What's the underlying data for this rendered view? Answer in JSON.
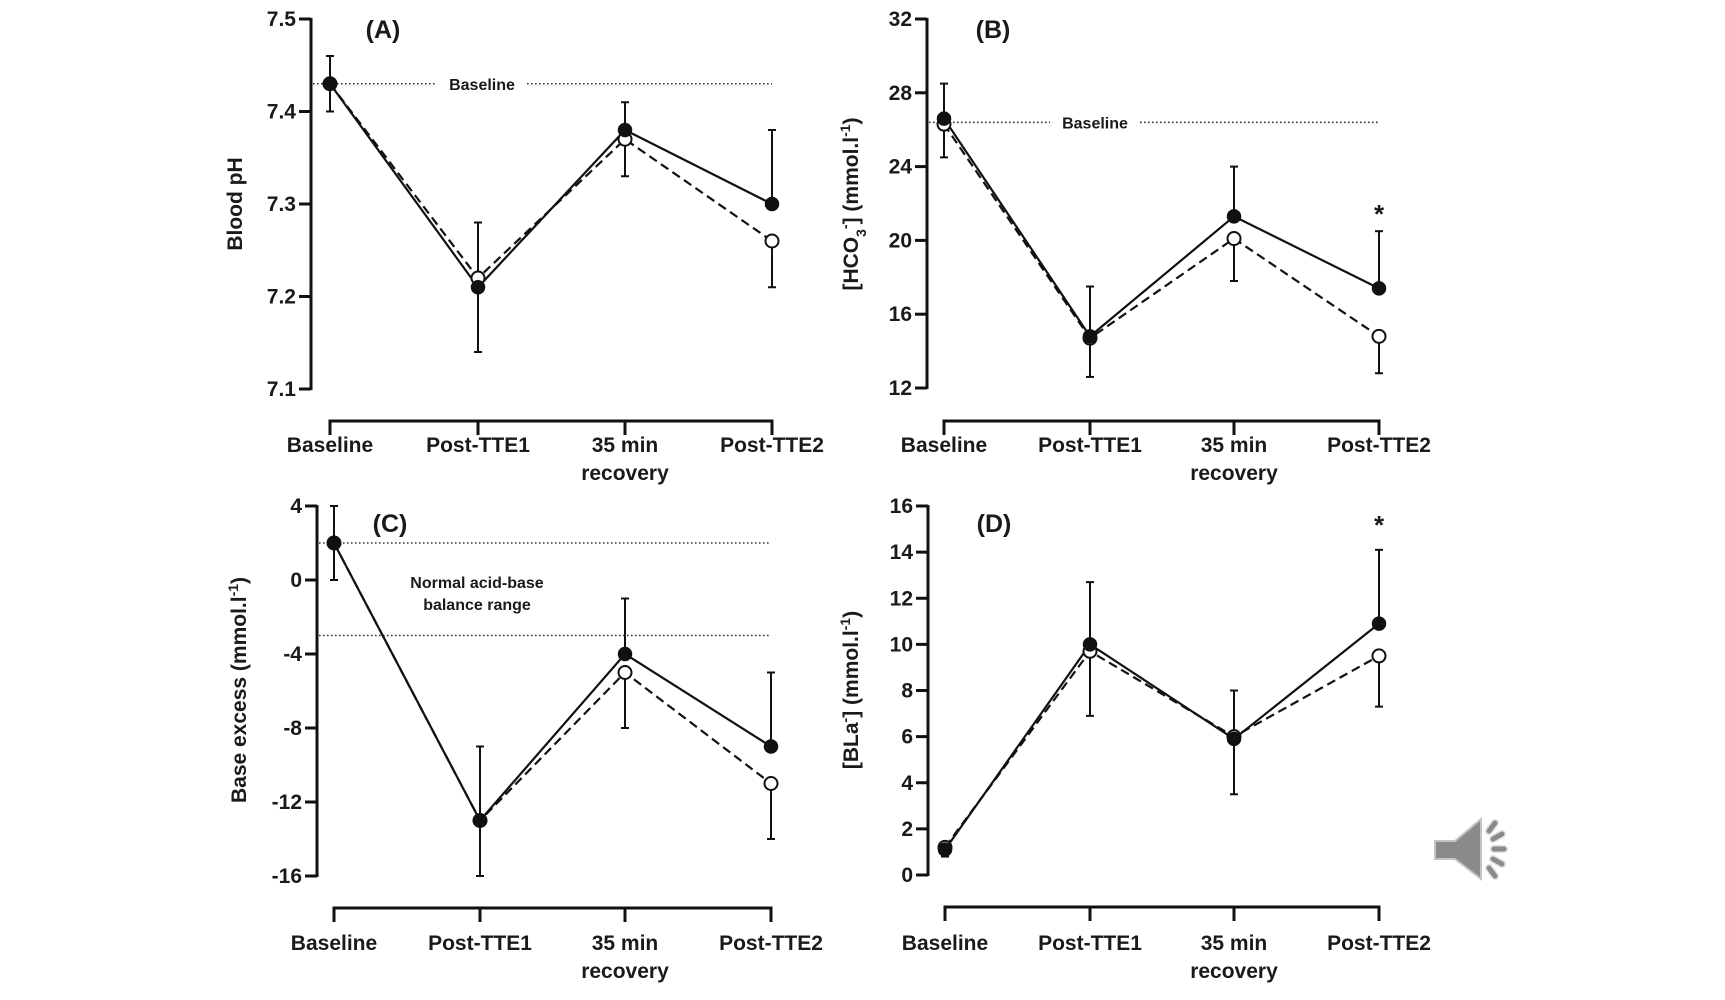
{
  "chart_data": [
    {
      "panel": "(A)",
      "type": "line",
      "title": "",
      "xlabel": "",
      "ylabel": "Blood pH",
      "categories": [
        "Baseline",
        "Post-TTE1",
        "35 min|recovery",
        "Post-TTE2"
      ],
      "ylim": [
        7.1,
        7.5
      ],
      "yticks": [
        "7.1",
        "7.2",
        "7.3",
        "7.4",
        "7.5"
      ],
      "ytick_values": [
        7.1,
        7.2,
        7.3,
        7.4,
        7.5
      ],
      "grid": false,
      "series": [
        {
          "name": "filled-circles",
          "marker": "filled",
          "line": "solid",
          "values": [
            7.43,
            7.21,
            7.38,
            7.3
          ],
          "err_upper": [
            7.46,
            7.28,
            7.41,
            7.38
          ],
          "err_lower": [
            7.4,
            null,
            null,
            null
          ]
        },
        {
          "name": "open-circles",
          "marker": "open",
          "line": "dashed",
          "values": [
            7.43,
            7.22,
            7.37,
            7.26
          ],
          "err_upper": [
            null,
            null,
            null,
            null
          ],
          "err_lower": [
            null,
            7.14,
            7.33,
            7.21
          ]
        }
      ],
      "reference_lines": [
        {
          "value": 7.43,
          "label": "Baseline",
          "from": "Baseline",
          "to": "Post-TTE2"
        }
      ],
      "annotations": []
    },
    {
      "panel": "(B)",
      "type": "line",
      "title": "",
      "xlabel": "",
      "ylabel": "[HCO3-] (mmol.l-1)",
      "ylabel_parts": {
        "pre": "[HCO",
        "sub": "3",
        "sup1": "-",
        "mid": "] (mmol.l",
        "sup2": "-1",
        "post": ")"
      },
      "categories": [
        "Baseline",
        "Post-TTE1",
        "35 min|recovery",
        "Post-TTE2"
      ],
      "ylim": [
        12,
        32
      ],
      "yticks": [
        "12",
        "16",
        "20",
        "24",
        "28",
        "32"
      ],
      "ytick_values": [
        12,
        16,
        20,
        24,
        28,
        32
      ],
      "grid": false,
      "series": [
        {
          "name": "filled-circles",
          "marker": "filled",
          "line": "solid",
          "values": [
            26.6,
            14.8,
            21.3,
            17.4
          ],
          "err_upper": [
            28.5,
            17.5,
            24.0,
            20.5
          ],
          "err_lower": [
            null,
            null,
            null,
            null
          ]
        },
        {
          "name": "open-circles",
          "marker": "open",
          "line": "dashed",
          "values": [
            26.3,
            14.7,
            20.1,
            14.8
          ],
          "err_upper": [
            null,
            null,
            null,
            null
          ],
          "err_lower": [
            24.5,
            12.6,
            17.8,
            12.8
          ]
        }
      ],
      "reference_lines": [
        {
          "value": 26.4,
          "label": "Baseline",
          "from": "Baseline",
          "to": "Post-TTE2"
        }
      ],
      "annotations": [
        {
          "text": "*",
          "category": "Post-TTE2",
          "y": 21.6
        }
      ]
    },
    {
      "panel": "(C)",
      "type": "line",
      "title": "",
      "xlabel": "",
      "ylabel": "Base excess (mmol.l-1)",
      "ylabel_parts": {
        "pre": "Base excess (mmol.l",
        "sup2": "-1",
        "post": ")"
      },
      "categories": [
        "Baseline",
        "Post-TTE1",
        "35 min|recovery",
        "Post-TTE2"
      ],
      "ylim": [
        -16,
        4
      ],
      "yticks": [
        "-16",
        "-12",
        "-8",
        "-4",
        "0",
        "4"
      ],
      "ytick_values": [
        -16,
        -12,
        -8,
        -4,
        0,
        4
      ],
      "grid": false,
      "series": [
        {
          "name": "filled-circles",
          "marker": "filled",
          "line": "solid",
          "values": [
            2.0,
            -13.0,
            -4.0,
            -9.0
          ],
          "err_upper": [
            4.0,
            -9.0,
            -1.0,
            -5.0
          ],
          "err_lower": [
            0.0,
            null,
            null,
            null
          ]
        },
        {
          "name": "open-circles",
          "marker": "open",
          "line": "dashed",
          "values": [
            2.0,
            -13.0,
            -5.0,
            -11.0
          ],
          "err_upper": [
            null,
            null,
            null,
            null
          ],
          "err_lower": [
            null,
            -16.0,
            -8.0,
            -14.0
          ]
        }
      ],
      "reference_lines": [
        {
          "value": 2.0,
          "label": "",
          "from": "Baseline",
          "to": "Post-TTE2"
        },
        {
          "value": -3.0,
          "label": "",
          "from": "Baseline",
          "to": "Post-TTE2"
        }
      ],
      "annotations": [
        {
          "text": "Normal acid-base|balance range",
          "category": "Post-TTE1",
          "y": 0.0
        }
      ]
    },
    {
      "panel": "(D)",
      "type": "line",
      "title": "",
      "xlabel": "",
      "ylabel": "[BLa-] (mmol.l-1)",
      "ylabel_parts": {
        "pre": "[BLa",
        "sup1": "-",
        "mid": "] (mmol.l",
        "sup2": "-1",
        "post": ")"
      },
      "categories": [
        "Baseline",
        "Post-TTE1",
        "35 min|recovery",
        "Post-TTE2"
      ],
      "ylim": [
        0,
        16
      ],
      "yticks": [
        "0",
        "2",
        "4",
        "6",
        "8",
        "10",
        "12",
        "14",
        "16"
      ],
      "ytick_values": [
        0,
        2,
        4,
        6,
        8,
        10,
        12,
        14,
        16
      ],
      "grid": false,
      "series": [
        {
          "name": "filled-circles",
          "marker": "filled",
          "line": "solid",
          "values": [
            1.1,
            10.0,
            5.9,
            10.9
          ],
          "err_upper": [
            1.4,
            12.7,
            8.0,
            14.1
          ],
          "err_lower": [
            0.8,
            null,
            null,
            null
          ]
        },
        {
          "name": "open-circles",
          "marker": "open",
          "line": "dashed",
          "values": [
            1.2,
            9.7,
            6.0,
            9.5
          ],
          "err_upper": [
            null,
            null,
            null,
            null
          ],
          "err_lower": [
            null,
            6.9,
            3.5,
            7.3
          ]
        }
      ],
      "reference_lines": [],
      "annotations": [
        {
          "text": "*",
          "category": "Post-TTE2",
          "y": 15.3
        }
      ]
    }
  ],
  "overlay": {
    "speaker_icon": "speaker-volume-icon"
  }
}
